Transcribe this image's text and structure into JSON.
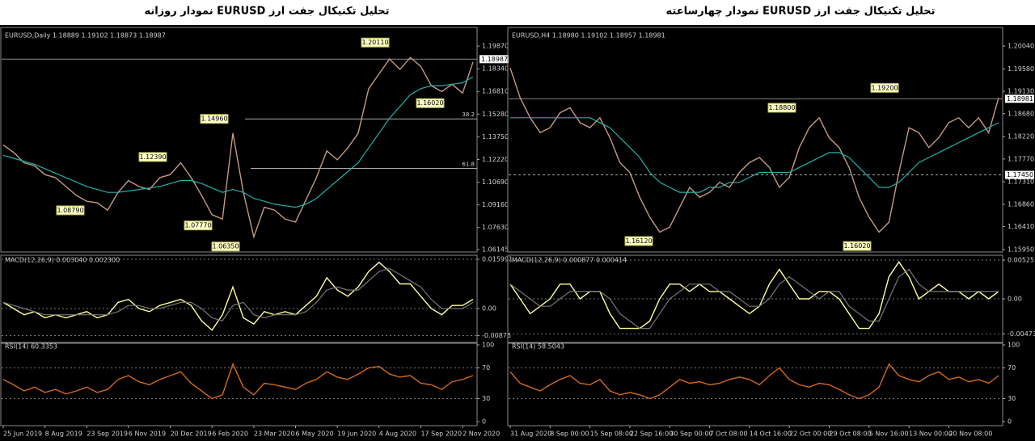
{
  "chart_data": [
    {
      "type": "line",
      "title": "تحلیل تکنیکال جفت ارز EURUSD نمودار روزانه",
      "subtitle": "EURUSD,Daily  1.18889 1.19102 1.18873 1.18987",
      "categories": [
        "25 Jun 2019",
        null,
        null,
        null,
        "8 Aug 2019",
        null,
        null,
        null,
        "23 Sep 2019",
        null,
        null,
        null,
        "6 Nov 2019",
        null,
        null,
        null,
        "20 Dec 2019",
        null,
        null,
        null,
        "6 Feb 2020",
        null,
        null,
        null,
        "23 Mar 2020",
        null,
        null,
        null,
        "6 May 2020",
        null,
        null,
        null,
        "19 Jun 2020",
        null,
        null,
        null,
        "4 Aug 2020",
        null,
        null,
        null,
        "17 Sep 2020",
        null,
        null,
        null,
        "2 Nov 2020",
        null
      ],
      "series": [
        {
          "color": "#c49a84",
          "values": [
            1.132,
            1.127,
            1.12,
            1.118,
            1.112,
            1.11,
            1.104,
            1.098,
            1.094,
            1.093,
            1.088,
            1.1,
            1.108,
            1.104,
            1.102,
            1.11,
            1.112,
            1.12,
            1.11,
            1.098,
            1.085,
            1.082,
            1.14,
            1.1,
            1.07,
            1.09,
            1.088,
            1.082,
            1.08,
            1.095,
            1.11,
            1.128,
            1.122,
            1.13,
            1.14,
            1.17,
            1.18,
            1.19,
            1.183,
            1.191,
            1.185,
            1.172,
            1.168,
            1.173,
            1.167,
            1.188
          ]
        },
        {
          "color": "#20b2aa",
          "values": [
            1.125,
            1.123,
            1.121,
            1.119,
            1.116,
            1.113,
            1.11,
            1.107,
            1.104,
            1.102,
            1.1,
            1.1,
            1.101,
            1.102,
            1.103,
            1.104,
            1.106,
            1.108,
            1.108,
            1.106,
            1.103,
            1.1,
            1.102,
            1.1,
            1.096,
            1.094,
            1.092,
            1.091,
            1.09,
            1.092,
            1.096,
            1.102,
            1.108,
            1.114,
            1.12,
            1.13,
            1.14,
            1.15,
            1.158,
            1.166,
            1.17,
            1.172,
            1.172,
            1.173,
            1.174,
            1.178
          ]
        }
      ],
      "ylim": [
        1.0598,
        1.2091
      ],
      "yticks": [
        {
          "value": 1.1987,
          "label": "1.19870"
        },
        {
          "value": 1.1834,
          "label": "1.18340"
        },
        {
          "value": 1.1681,
          "label": "1.16810"
        },
        {
          "value": 1.1528,
          "label": "1.15280"
        },
        {
          "value": 1.1375,
          "label": "1.13750"
        },
        {
          "value": 1.1222,
          "label": "1.12220"
        },
        {
          "value": 1.1069,
          "label": "1.10690"
        },
        {
          "value": 1.0916,
          "label": "1.09160"
        },
        {
          "value": 1.0763,
          "label": "1.07630"
        },
        {
          "value": 1.06145,
          "label": "1.06145"
        }
      ],
      "annotations": [
        {
          "value": 1.2011,
          "label": "1.20110"
        },
        {
          "value": 1.1496,
          "label": "1.14960"
        },
        {
          "value": 1.1239,
          "label": "1.12390"
        },
        {
          "value": 1.0879,
          "label": "1.08790"
        },
        {
          "value": 1.0777,
          "label": "1.07770"
        },
        {
          "value": 1.0635,
          "label": "1.06350"
        },
        {
          "value": 1.1602,
          "label": "1.16020"
        }
      ],
      "levels": [
        {
          "value": 1.1496,
          "label": "38.2"
        },
        {
          "value": 1.1162,
          "label": "61.8"
        }
      ],
      "price": {
        "value": 1.18987,
        "label": "1.18987"
      },
      "macd": {
        "label": "MACD(12,26,9) 0.003040 0.002300",
        "series": [
          {
            "color": "#ffff99",
            "values": [
              0.002,
              0.0,
              -0.002,
              -0.001,
              -0.003,
              -0.002,
              -0.003,
              -0.002,
              -0.001,
              -0.003,
              -0.002,
              0.002,
              0.003,
              0.0,
              -0.001,
              0.001,
              0.002,
              0.003,
              0.001,
              -0.004,
              -0.007,
              -0.002,
              0.007,
              -0.003,
              -0.005,
              -0.001,
              -0.002,
              -0.001,
              -0.002,
              0.001,
              0.004,
              0.01,
              0.006,
              0.004,
              0.007,
              0.012,
              0.015,
              0.012,
              0.008,
              0.008,
              0.004,
              0.0,
              -0.002,
              0.001,
              0.001,
              0.003
            ]
          },
          {
            "color": "#777777",
            "values": [
              0.002,
              0.001,
              0.0,
              -0.001,
              -0.002,
              -0.002,
              -0.002,
              -0.002,
              -0.002,
              -0.002,
              -0.002,
              -0.001,
              0.001,
              0.001,
              0.0,
              0.0,
              0.001,
              0.002,
              0.002,
              0.0,
              -0.003,
              -0.004,
              0.001,
              0.002,
              -0.002,
              -0.003,
              -0.002,
              -0.002,
              -0.002,
              -0.001,
              0.002,
              0.006,
              0.007,
              0.006,
              0.006,
              0.009,
              0.012,
              0.013,
              0.011,
              0.009,
              0.007,
              0.003,
              0.0,
              0.0,
              0.0,
              0.002
            ]
          }
        ],
        "ylim": [
          -0.011,
          0.0173
        ],
        "yticks": [
          0.015991,
          {
            "value": 0,
            "label": "0.00"
          },
          -0.00876
        ]
      },
      "rsi": {
        "label": "RSI(14) 60.3353",
        "series": [
          {
            "color": "#d2691e",
            "values": [
              55,
              48,
              40,
              45,
              38,
              42,
              36,
              40,
              45,
              38,
              42,
              55,
              60,
              52,
              48,
              55,
              60,
              65,
              50,
              40,
              30,
              35,
              75,
              45,
              35,
              50,
              48,
              45,
              42,
              50,
              55,
              65,
              58,
              55,
              62,
              70,
              72,
              62,
              58,
              60,
              50,
              48,
              42,
              52,
              55,
              60
            ]
          }
        ],
        "ylim": [
          0,
          100
        ],
        "yticks": [
          100,
          70,
          30,
          0
        ]
      }
    },
    {
      "type": "line",
      "title": "تحلیل تکنیکال جفت ارز EURUSD نمودار چهارساعته",
      "subtitle": "EURUSD,H4  1.18980 1.19102 1.18957 1.18981",
      "categories": [
        "31 Aug 2020",
        null,
        null,
        null,
        "8 Sep 00:00",
        null,
        null,
        null,
        "15 Sep 08:00",
        null,
        null,
        null,
        "22 Sep 16:00",
        null,
        null,
        null,
        "30 Sep 00:00",
        null,
        null,
        null,
        "7 Oct 08:00",
        null,
        null,
        null,
        "14 Oct 16:00",
        null,
        null,
        null,
        "22 Oct 00:00",
        null,
        null,
        null,
        "29 Oct 08:00",
        null,
        null,
        null,
        "5 Nov 16:00",
        null,
        null,
        null,
        "13 Nov 00:00",
        null,
        null,
        null,
        "20 Nov 08:00",
        null,
        null,
        null,
        null,
        null
      ],
      "series": [
        {
          "color": "#c49a84",
          "values": [
            1.196,
            1.19,
            1.186,
            1.183,
            1.184,
            1.187,
            1.188,
            1.185,
            1.184,
            1.186,
            1.182,
            1.177,
            1.175,
            1.17,
            1.166,
            1.163,
            1.164,
            1.168,
            1.172,
            1.17,
            1.171,
            1.173,
            1.172,
            1.175,
            1.177,
            1.178,
            1.176,
            1.172,
            1.174,
            1.18,
            1.184,
            1.186,
            1.182,
            1.18,
            1.176,
            1.17,
            1.166,
            1.163,
            1.165,
            1.175,
            1.184,
            1.183,
            1.18,
            1.182,
            1.185,
            1.186,
            1.184,
            1.186,
            1.183,
            1.19
          ]
        },
        {
          "color": "#20b2aa",
          "values": [
            1.186,
            1.186,
            1.186,
            1.186,
            1.186,
            1.186,
            1.186,
            1.186,
            1.186,
            1.185,
            1.184,
            1.182,
            1.18,
            1.178,
            1.175,
            1.173,
            1.172,
            1.171,
            1.171,
            1.171,
            1.172,
            1.172,
            1.173,
            1.173,
            1.174,
            1.175,
            1.175,
            1.175,
            1.175,
            1.176,
            1.177,
            1.178,
            1.179,
            1.179,
            1.178,
            1.176,
            1.174,
            1.172,
            1.172,
            1.173,
            1.175,
            1.177,
            1.178,
            1.179,
            1.18,
            1.181,
            1.182,
            1.183,
            1.184,
            1.185
          ]
        }
      ],
      "ylim": [
        1.159,
        1.2035
      ],
      "yticks": [
        {
          "value": 1.2004,
          "label": "1.20040"
        },
        {
          "value": 1.1958,
          "label": "1.19580"
        },
        {
          "value": 1.1913,
          "label": "1.19130"
        },
        {
          "value": 1.1868,
          "label": "1.18680"
        },
        {
          "value": 1.1822,
          "label": "1.18220"
        },
        {
          "value": 1.1777,
          "label": "1.17770"
        },
        {
          "value": 1.1731,
          "label": "1.17310"
        },
        {
          "value": 1.1686,
          "label": "1.16860"
        },
        {
          "value": 1.1641,
          "label": "1.16410"
        },
        {
          "value": 1.1595,
          "label": "1.15950"
        }
      ],
      "annotations": [
        {
          "value": 1.192,
          "label": "1.19200"
        },
        {
          "value": 1.188,
          "label": "1.18800"
        },
        {
          "value": 1.1612,
          "label": "1.16120"
        },
        {
          "value": 1.1602,
          "label": "1.16020"
        }
      ],
      "levels": [
        {
          "value": 1.1745,
          "label": "1.17450"
        }
      ],
      "price": {
        "value": 1.18981,
        "label": "1.18981"
      },
      "macd": {
        "label": "MACD(12,26,9) 0.000877 0.000414",
        "series": [
          {
            "color": "#ffff99",
            "values": [
              0.002,
              0.0,
              -0.002,
              -0.001,
              0.0,
              0.002,
              0.002,
              0.0,
              0.001,
              0.001,
              -0.002,
              -0.004,
              -0.004,
              -0.004,
              -0.003,
              0.0,
              0.002,
              0.002,
              0.001,
              0.002,
              0.001,
              0.001,
              0.0,
              -0.001,
              -0.002,
              -0.001,
              0.002,
              0.004,
              0.002,
              0.0,
              0.0,
              0.001,
              0.001,
              0.0,
              -0.002,
              -0.004,
              -0.004,
              -0.002,
              0.003,
              0.005,
              0.003,
              0.0,
              0.001,
              0.002,
              0.001,
              0.001,
              0.0,
              0.001,
              0.0,
              0.001
            ]
          },
          {
            "color": "#777777",
            "values": [
              0.002,
              0.001,
              0.0,
              -0.001,
              -0.001,
              0.0,
              0.001,
              0.001,
              0.001,
              0.001,
              0.0,
              -0.002,
              -0.003,
              -0.004,
              -0.004,
              -0.002,
              0.0,
              0.001,
              0.002,
              0.002,
              0.002,
              0.001,
              0.001,
              0.0,
              -0.001,
              -0.001,
              0.0,
              0.002,
              0.003,
              0.002,
              0.001,
              0.0,
              0.001,
              0.001,
              -0.001,
              -0.002,
              -0.003,
              -0.003,
              0.0,
              0.003,
              0.004,
              0.002,
              0.001,
              0.001,
              0.001,
              0.001,
              0.001,
              0.001,
              0.001,
              0.001
            ]
          }
        ],
        "ylim": [
          -0.0059,
          0.00591
        ],
        "yticks": [
          0.00525,
          {
            "value": 0,
            "label": "0.00"
          },
          -0.004732
        ]
      },
      "rsi": {
        "label": "RSI(14) 58.5043",
        "series": [
          {
            "color": "#d2691e",
            "values": [
              65,
              50,
              45,
              40,
              48,
              55,
              60,
              50,
              48,
              55,
              40,
              35,
              38,
              35,
              30,
              35,
              45,
              55,
              50,
              52,
              48,
              50,
              55,
              58,
              55,
              48,
              60,
              70,
              55,
              48,
              45,
              50,
              48,
              42,
              35,
              30,
              35,
              45,
              75,
              60,
              55,
              52,
              60,
              65,
              55,
              58,
              52,
              55,
              50,
              60
            ]
          }
        ],
        "ylim": [
          0,
          100
        ],
        "yticks": [
          100,
          70,
          30,
          0
        ]
      }
    }
  ]
}
